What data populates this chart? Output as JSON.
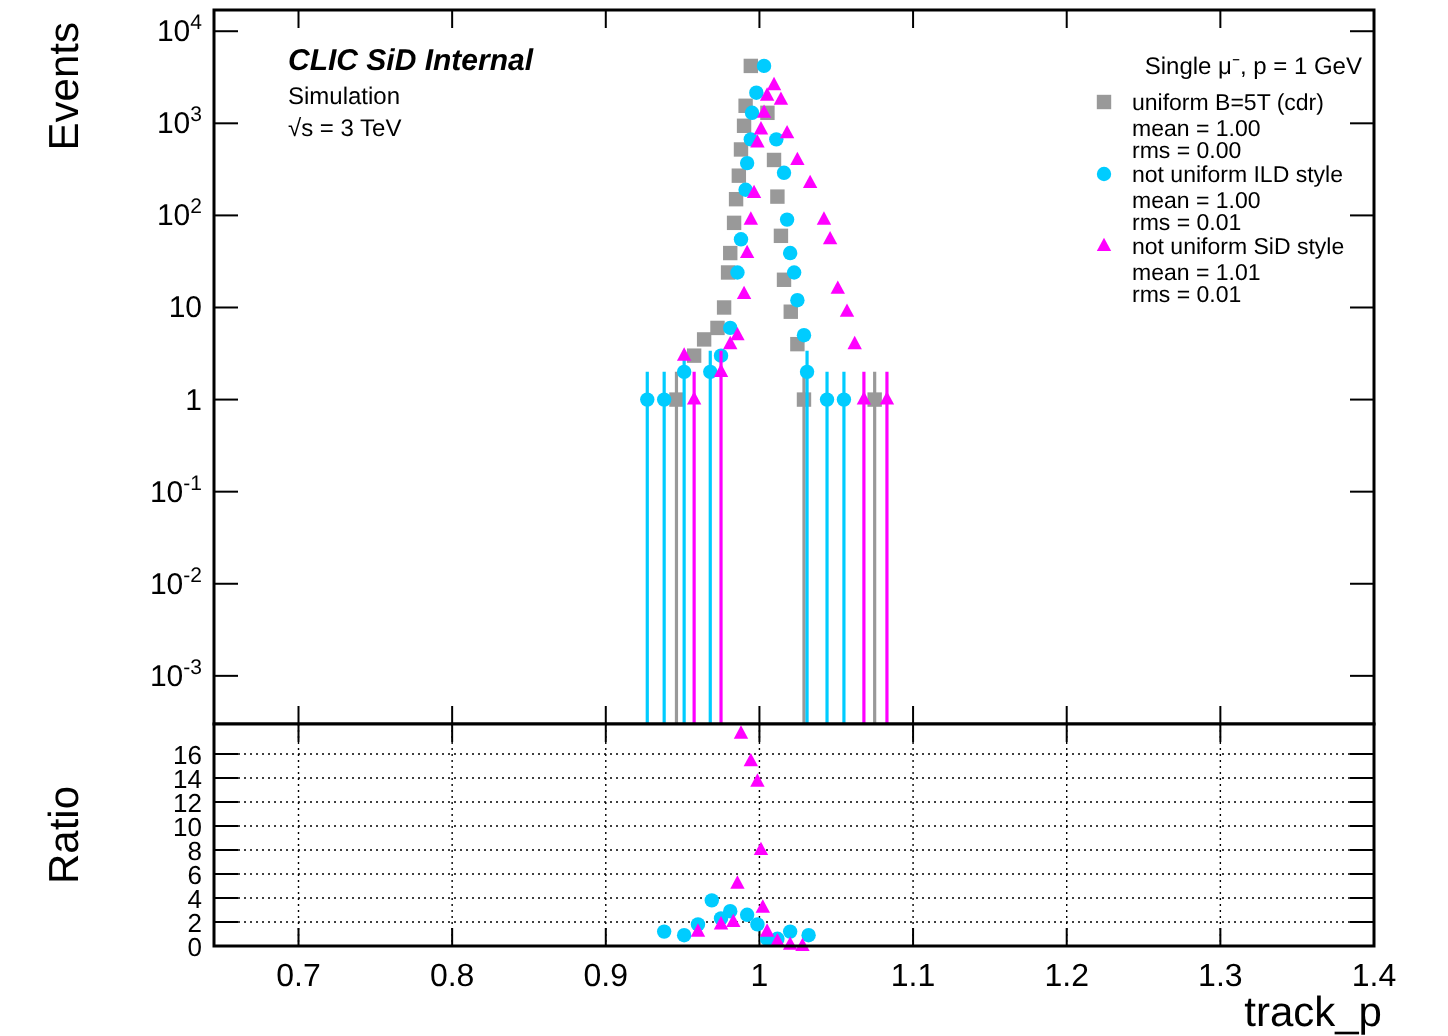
{
  "chart_data": [
    {
      "type": "scatter",
      "title": "CLIC SiD Internal",
      "subtitle": "Simulation",
      "ylabel": "Events",
      "legend_title": "Single μ⁻, p = 1 GeV",
      "legend": "top right",
      "log": "y",
      "tick_labels": "y",
      "annotations": [
        "√s = 3 TeV",
        "mean =   1.00",
        "rms =   0.00",
        "mean =   1.00",
        "rms =   0.01",
        "mean =   1.01",
        "rms =   0.01"
      ],
      "xlim": [
        0.645,
        1.4
      ],
      "xticks": [
        0.7,
        0.8,
        0.9,
        1,
        1.1,
        1.2,
        1.3,
        1.4
      ],
      "ylim": [
        0.0003,
        17000
      ],
      "yticks": [
        {
          "value": 0.001,
          "label": "10$^{-3}$"
        },
        {
          "value": 0.01,
          "label": "10$^{-2}$"
        },
        {
          "value": 0.1,
          "label": "10$^{-1}$"
        },
        1,
        10,
        {
          "value": 100,
          "label": "10$^{2}$"
        },
        {
          "value": 1000,
          "label": "10$^{3}$"
        },
        {
          "value": 10000,
          "label": "10$^{4}$"
        }
      ],
      "series": [
        {
          "name": "uniform B=5T (cdr)",
          "color": "#999999",
          "marker": "square",
          "x": [
            0.946,
            0.9575,
            0.964,
            0.9727,
            0.977,
            0.9796,
            0.981,
            0.9835,
            0.9848,
            0.9866,
            0.988,
            0.99,
            0.991,
            0.9944,
            1.0052,
            1.0095,
            1.0117,
            1.014,
            1.016,
            1.0204,
            1.0247,
            1.029,
            1.075
          ],
          "values": [
            1,
            3,
            4.5,
            6,
            10,
            24,
            39,
            83,
            150,
            270,
            520,
            940,
            1550,
            4200,
            1300,
            400,
            160,
            60,
            20,
            9,
            4,
            1,
            1
          ],
          "errors": [
            [
              0.0003,
              2
            ],
            null,
            null,
            null,
            null,
            null,
            null,
            null,
            null,
            null,
            null,
            null,
            null,
            null,
            null,
            null,
            null,
            null,
            null,
            null,
            null,
            [
              0.0003,
              2
            ],
            [
              0.0003,
              2
            ]
          ]
        },
        {
          "name": "not uniform ILD style",
          "color": "#00ccff",
          "marker": "circle",
          "x": [
            0.927,
            0.938,
            0.951,
            0.968,
            0.975,
            0.981,
            0.9857,
            0.988,
            0.991,
            0.992,
            0.9944,
            0.9952,
            0.998,
            1.003,
            1.011,
            1.016,
            1.018,
            1.02,
            1.0226,
            1.0247,
            1.029,
            1.031,
            1.044,
            1.055
          ],
          "values": [
            1,
            1,
            2,
            2,
            3,
            6,
            24,
            55,
            190,
            370,
            670,
            1300,
            2150,
            4200,
            670,
            290,
            90,
            39,
            24,
            12,
            5,
            2,
            1,
            1
          ],
          "errors": [
            [
              0.0003,
              2
            ],
            [
              0.0003,
              2
            ],
            [
              0.0003,
              3.4
            ],
            [
              0.0003,
              3.4
            ],
            null,
            null,
            null,
            null,
            null,
            null,
            null,
            null,
            null,
            null,
            null,
            null,
            null,
            null,
            null,
            null,
            null,
            [
              0.0003,
              3.4
            ],
            [
              0.0003,
              2
            ],
            [
              0.0003,
              2
            ]
          ]
        },
        {
          "name": "not uniform SiD style",
          "color": "#ff00ff",
          "marker": "triangle",
          "x": [
            0.951,
            0.9575,
            0.975,
            0.981,
            0.9857,
            0.99,
            0.992,
            0.9944,
            0.9965,
            0.9987,
            1.001,
            1.003,
            1.005,
            1.0095,
            1.014,
            1.018,
            1.0247,
            1.033,
            1.042,
            1.046,
            1.051,
            1.057,
            1.062,
            1.068,
            1.083
          ],
          "values": [
            3,
            1,
            2,
            4,
            5,
            14,
            39,
            90,
            175,
            620,
            860,
            1300,
            2000,
            2600,
            1800,
            780,
            400,
            225,
            90,
            55,
            16,
            9,
            4,
            1,
            1
          ],
          "errors": [
            null,
            [
              0.0003,
              2
            ],
            [
              0.0003,
              3.4
            ],
            null,
            null,
            null,
            null,
            null,
            null,
            null,
            null,
            null,
            null,
            null,
            null,
            null,
            null,
            null,
            null,
            null,
            null,
            null,
            null,
            [
              0.0003,
              2
            ],
            [
              0.0003,
              2
            ]
          ]
        }
      ]
    },
    {
      "type": "scatter",
      "ylabel": "Ratio",
      "xlabel": "track_p",
      "grid": true,
      "xlim": [
        0.645,
        1.4
      ],
      "xticks": [
        0.7,
        0.8,
        0.9,
        1,
        1.1,
        1.2,
        1.3,
        1.4
      ],
      "ylim": [
        0,
        18.5
      ],
      "yticks": [
        0,
        2,
        4,
        6,
        8,
        10,
        12,
        14,
        16
      ],
      "series": [
        {
          "color": "#00ccff",
          "marker": "circle",
          "x": [
            0.938,
            0.951,
            0.96,
            0.969,
            0.975,
            0.981,
            0.992,
            0.9987,
            1.005,
            1.0117,
            1.02,
            1.032
          ],
          "values": [
            1.2,
            0.9,
            1.8,
            3.8,
            2.3,
            2.9,
            2.6,
            1.8,
            0.6,
            0.6,
            1.2,
            0.9
          ]
        },
        {
          "color": "#ff00ff",
          "marker": "triangle",
          "x": [
            0.96,
            0.975,
            0.983,
            0.9857,
            0.988,
            0.9944,
            0.9987,
            1.001,
            1.0022,
            1.005,
            1.0117,
            1.02,
            1.028
          ],
          "values": [
            1.2,
            1.8,
            2,
            5.2,
            17.7,
            15.4,
            13.7,
            8,
            3.2,
            1.2,
            0.4,
            0.1,
            0
          ]
        }
      ]
    }
  ]
}
